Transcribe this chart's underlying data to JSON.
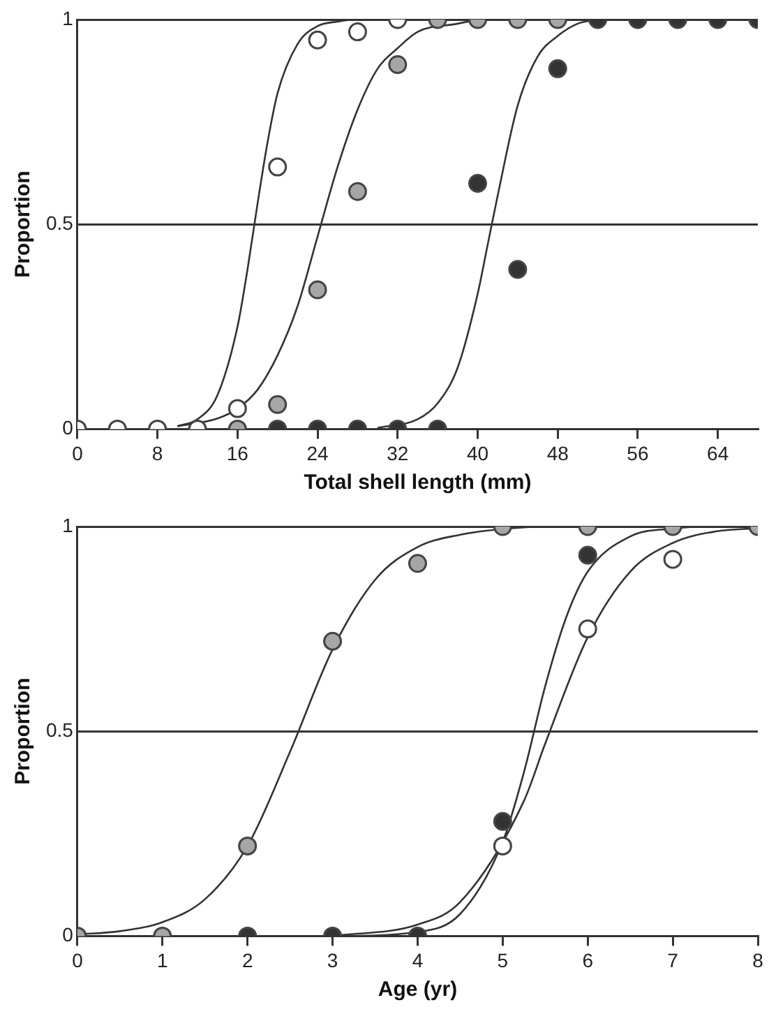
{
  "chart_data": [
    {
      "type": "scatter",
      "xlabel": "Total shell length (mm)",
      "ylabel": "Proportion",
      "xlim": [
        0,
        68
      ],
      "xticks": [
        0,
        8,
        16,
        24,
        32,
        40,
        48,
        56,
        64
      ],
      "ylim": [
        0,
        1
      ],
      "yticks": [
        0,
        0.5,
        1
      ],
      "grid": "y",
      "marker": "circle",
      "series": [
        {
          "type": "line",
          "color": "#333333",
          "marker": "none",
          "line_style": "solid",
          "x": [
            10,
            12,
            14,
            16,
            17,
            18,
            19,
            20,
            22,
            24,
            26,
            28,
            32
          ],
          "values": [
            0.007,
            0.024,
            0.083,
            0.25,
            0.39,
            0.55,
            0.7,
            0.82,
            0.94,
            0.984,
            0.995,
            1,
            1
          ]
        },
        {
          "type": "line",
          "color": "#333333",
          "marker": "none",
          "line_style": "solid",
          "x": [
            10,
            14,
            16,
            18,
            20,
            22,
            24,
            26,
            28,
            30,
            32,
            34,
            38,
            40
          ],
          "values": [
            0.007,
            0.026,
            0.05,
            0.096,
            0.18,
            0.3,
            0.47,
            0.64,
            0.78,
            0.88,
            0.93,
            0.97,
            0.99,
            1
          ]
        },
        {
          "type": "line",
          "color": "#333333",
          "marker": "none",
          "line_style": "solid",
          "x": [
            30,
            34,
            36,
            38,
            40,
            41,
            42,
            44,
            46,
            48,
            50,
            52
          ],
          "values": [
            0.003,
            0.024,
            0.063,
            0.15,
            0.33,
            0.45,
            0.57,
            0.79,
            0.91,
            0.96,
            0.99,
            1
          ]
        },
        {
          "color": "#ffffff",
          "x": [
            0,
            4,
            8,
            12,
            16,
            20,
            24,
            28,
            32
          ],
          "values": [
            0,
            0,
            0,
            0,
            0.05,
            0.64,
            0.95,
            0.97,
            1
          ]
        },
        {
          "color": "#a6a6a6",
          "x": [
            16,
            20,
            24,
            28,
            32,
            36,
            40,
            44,
            48
          ],
          "values": [
            0,
            0.06,
            0.34,
            0.58,
            0.89,
            1,
            1,
            1,
            1
          ]
        },
        {
          "color": "#333333",
          "x": [
            20,
            24,
            28,
            32,
            36,
            40,
            44,
            48,
            52,
            56,
            60,
            64,
            68
          ],
          "values": [
            0,
            0,
            0,
            0,
            0,
            0.6,
            0.39,
            0.88,
            1,
            1,
            1,
            1,
            1
          ]
        }
      ]
    },
    {
      "type": "scatter",
      "xlabel": "Age (yr)",
      "ylabel": "Proportion",
      "xlim": [
        0,
        8
      ],
      "xticks": [
        0,
        1,
        2,
        3,
        4,
        5,
        6,
        7,
        8
      ],
      "ylim": [
        0,
        1
      ],
      "yticks": [
        0,
        0.5,
        1
      ],
      "grid": "y",
      "marker": "circle",
      "series": [
        {
          "type": "line",
          "color": "#333333",
          "marker": "none",
          "line_style": "solid",
          "x": [
            0,
            0.5,
            1,
            1.5,
            2,
            2.5,
            3,
            3.5,
            4,
            4.5,
            5,
            5.5,
            8
          ],
          "values": [
            0.004,
            0.012,
            0.034,
            0.09,
            0.22,
            0.45,
            0.7,
            0.87,
            0.95,
            0.98,
            0.994,
            1,
            1
          ]
        },
        {
          "type": "line",
          "color": "#333333",
          "marker": "none",
          "line_style": "solid",
          "x": [
            2,
            3,
            4,
            4.5,
            5,
            5.25,
            5.5,
            5.75,
            6,
            6.5,
            7,
            7.5,
            8
          ],
          "values": [
            0,
            0,
            0.01,
            0.054,
            0.23,
            0.4,
            0.61,
            0.78,
            0.89,
            0.976,
            0.995,
            1,
            1
          ]
        },
        {
          "type": "line",
          "color": "#333333",
          "marker": "none",
          "line_style": "solid",
          "x": [
            3,
            4,
            4.5,
            5.25,
            5.5,
            6,
            6.5,
            7,
            7.5,
            8
          ],
          "values": [
            0,
            0.028,
            0.083,
            0.33,
            0.47,
            0.73,
            0.89,
            0.96,
            0.988,
            0.996
          ]
        },
        {
          "color": "#333333",
          "x": [
            2,
            3,
            4,
            5,
            6
          ],
          "values": [
            0,
            0,
            0,
            0.28,
            0.93
          ]
        },
        {
          "color": "#ffffff",
          "x": [
            5,
            6,
            7
          ],
          "values": [
            0.22,
            0.75,
            0.92
          ]
        },
        {
          "color": "#a6a6a6",
          "x": [
            0,
            1,
            2,
            3,
            4,
            5,
            6,
            7,
            8
          ],
          "values": [
            0,
            0,
            0.22,
            0.72,
            0.91,
            1,
            1,
            1,
            1
          ]
        }
      ]
    }
  ]
}
